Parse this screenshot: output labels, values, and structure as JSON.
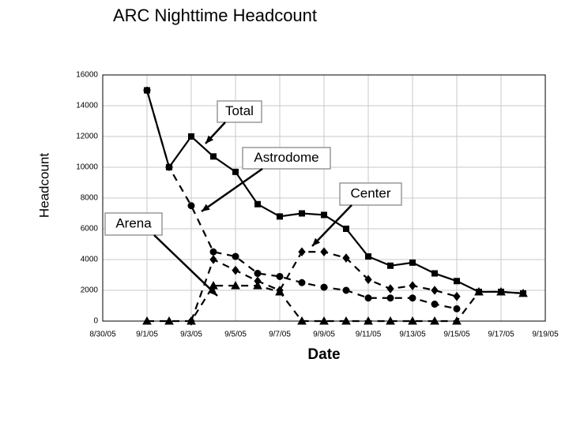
{
  "chart_data": {
    "type": "line",
    "title": "ARC Nighttime Headcount",
    "x_label": "Date",
    "y_label": "Headcount",
    "x": [
      "2005-09-01",
      "2005-09-02",
      "2005-09-03",
      "2005-09-04",
      "2005-09-05",
      "2005-09-06",
      "2005-09-07",
      "2005-09-08",
      "2005-09-09",
      "2005-09-10",
      "2005-09-11",
      "2005-09-12",
      "2005-09-13",
      "2005-09-14",
      "2005-09-15",
      "2005-09-16",
      "2005-09-17",
      "2005-09-18"
    ],
    "xlim": [
      "2005-08-30",
      "2005-09-19"
    ],
    "xticks": [
      {
        "value": "2005-08-30",
        "label": "8/30/05"
      },
      {
        "value": "2005-09-01",
        "label": "9/1/05"
      },
      {
        "value": "2005-09-03",
        "label": "9/3/05"
      },
      {
        "value": "2005-09-05",
        "label": "9/5/05"
      },
      {
        "value": "2005-09-07",
        "label": "9/7/05"
      },
      {
        "value": "2005-09-09",
        "label": "9/9/05"
      },
      {
        "value": "2005-09-11",
        "label": "9/11/05"
      },
      {
        "value": "2005-09-13",
        "label": "9/13/05"
      },
      {
        "value": "2005-09-15",
        "label": "9/15/05"
      },
      {
        "value": "2005-09-17",
        "label": "9/17/05"
      },
      {
        "value": "2005-09-19",
        "label": "9/19/05"
      }
    ],
    "ylim": [
      0,
      16000
    ],
    "yticks": [
      0,
      2000,
      4000,
      6000,
      8000,
      10000,
      12000,
      14000,
      16000
    ],
    "grid": true,
    "series": [
      {
        "name": "Total",
        "color": "#000000",
        "line_style": "solid",
        "marker": "square",
        "values": [
          15000,
          10000,
          12000,
          10700,
          9700,
          7600,
          6800,
          7000,
          6900,
          6000,
          4200,
          3600,
          3800,
          3100,
          2600,
          1900,
          1900,
          1800
        ]
      },
      {
        "name": "Astrodome",
        "color": "#000000",
        "line_style": "dashed",
        "marker": "circle",
        "values": [
          15000,
          10000,
          7500,
          4500,
          4200,
          3100,
          2900,
          2500,
          2200,
          2000,
          1500,
          1500,
          1500,
          1100,
          800,
          null,
          null,
          null
        ]
      },
      {
        "name": "Center",
        "color": "#000000",
        "line_style": "dashed",
        "marker": "diamond",
        "values": [
          null,
          null,
          0,
          4000,
          3300,
          2600,
          2000,
          4500,
          4500,
          4100,
          2700,
          2100,
          2300,
          2000,
          1600,
          null,
          null,
          null
        ]
      },
      {
        "name": "Arena",
        "color": "#000000",
        "line_style": "dashed",
        "marker": "triangle",
        "values": [
          0,
          0,
          0,
          2300,
          2300,
          2300,
          1900,
          0,
          0,
          0,
          0,
          0,
          0,
          0,
          0,
          1900,
          1900,
          1800
        ]
      }
    ]
  }
}
